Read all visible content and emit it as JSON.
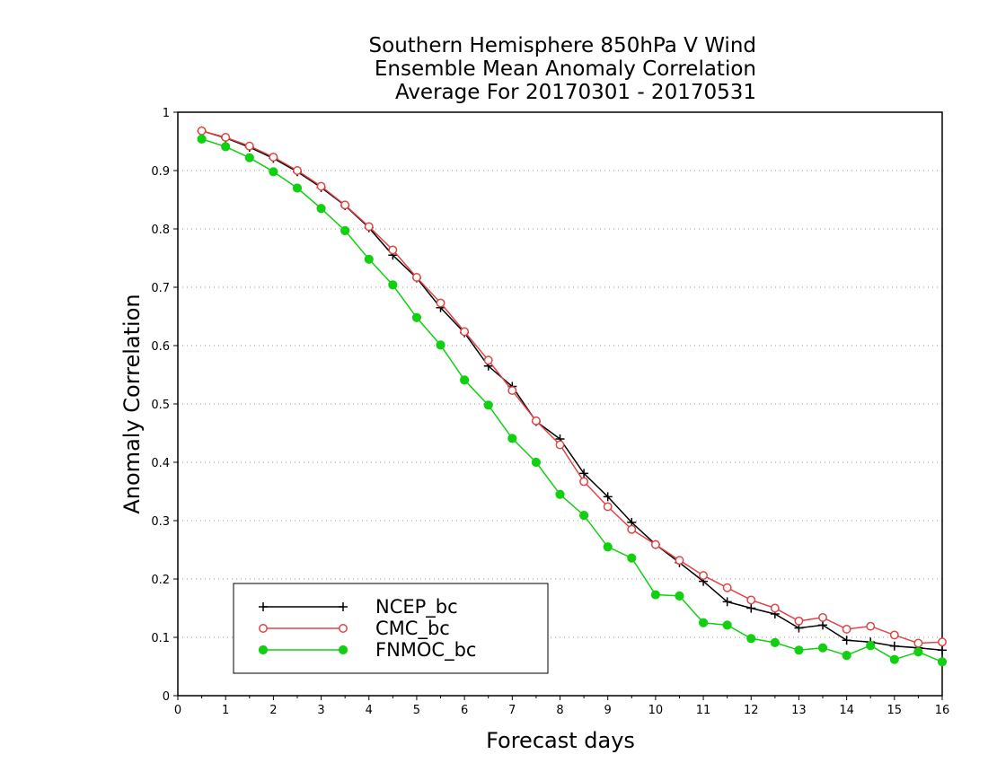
{
  "chart_data": {
    "type": "line",
    "title": [
      "Southern Hemisphere 850hPa V Wind",
      "Ensemble Mean Anomaly Correlation",
      "Average For 20170301 - 20170531"
    ],
    "xlabel": "Forecast days",
    "ylabel": "Anomaly Correlation",
    "xlim": [
      0,
      16
    ],
    "ylim": [
      0,
      1
    ],
    "x_ticks": [
      "0",
      "1",
      "2",
      "3",
      "4",
      "5",
      "6",
      "7",
      "8",
      "9",
      "10",
      "11",
      "12",
      "13",
      "14",
      "15",
      "16"
    ],
    "y_ticks": [
      "0",
      "0.1",
      "0.2",
      "0.3",
      "0.4",
      "0.5",
      "0.6",
      "0.7",
      "0.8",
      "0.9",
      "1"
    ],
    "grid": "horizontal dotted",
    "legend_position": "bottom-left",
    "x": [
      0.5,
      1,
      1.5,
      2,
      2.5,
      3,
      3.5,
      4,
      4.5,
      5,
      5.5,
      6,
      6.5,
      7,
      7.5,
      8,
      8.5,
      9,
      9.5,
      10,
      10.5,
      11,
      11.5,
      12,
      12.5,
      13,
      13.5,
      14,
      14.5,
      15,
      15.5,
      16
    ],
    "series": [
      {
        "name": "NCEP_bc",
        "color": "#000000",
        "marker": "plus",
        "values": [
          0.968,
          0.956,
          0.94,
          0.921,
          0.898,
          0.871,
          0.84,
          0.802,
          0.755,
          0.716,
          0.665,
          0.622,
          0.565,
          0.53,
          0.47,
          0.44,
          0.381,
          0.341,
          0.297,
          0.259,
          0.228,
          0.196,
          0.161,
          0.15,
          0.14,
          0.116,
          0.121,
          0.095,
          0.092,
          0.085,
          0.082,
          0.078
        ]
      },
      {
        "name": "CMC_bc",
        "color": "#e04545",
        "marker": "open-circle",
        "values": [
          0.968,
          0.957,
          0.942,
          0.923,
          0.9,
          0.873,
          0.841,
          0.804,
          0.764,
          0.717,
          0.673,
          0.624,
          0.575,
          0.523,
          0.471,
          0.43,
          0.367,
          0.324,
          0.285,
          0.259,
          0.232,
          0.206,
          0.185,
          0.164,
          0.15,
          0.128,
          0.134,
          0.114,
          0.119,
          0.104,
          0.09,
          0.092
        ]
      },
      {
        "name": "FNMOC_bc",
        "color": "#10d010",
        "marker": "filled-circle",
        "values": [
          0.954,
          0.941,
          0.922,
          0.898,
          0.87,
          0.835,
          0.797,
          0.748,
          0.704,
          0.648,
          0.601,
          0.541,
          0.498,
          0.441,
          0.4,
          0.345,
          0.309,
          0.255,
          0.236,
          0.173,
          0.171,
          0.125,
          0.121,
          0.098,
          0.091,
          0.078,
          0.082,
          0.069,
          0.086,
          0.062,
          0.075,
          0.058
        ]
      }
    ]
  }
}
